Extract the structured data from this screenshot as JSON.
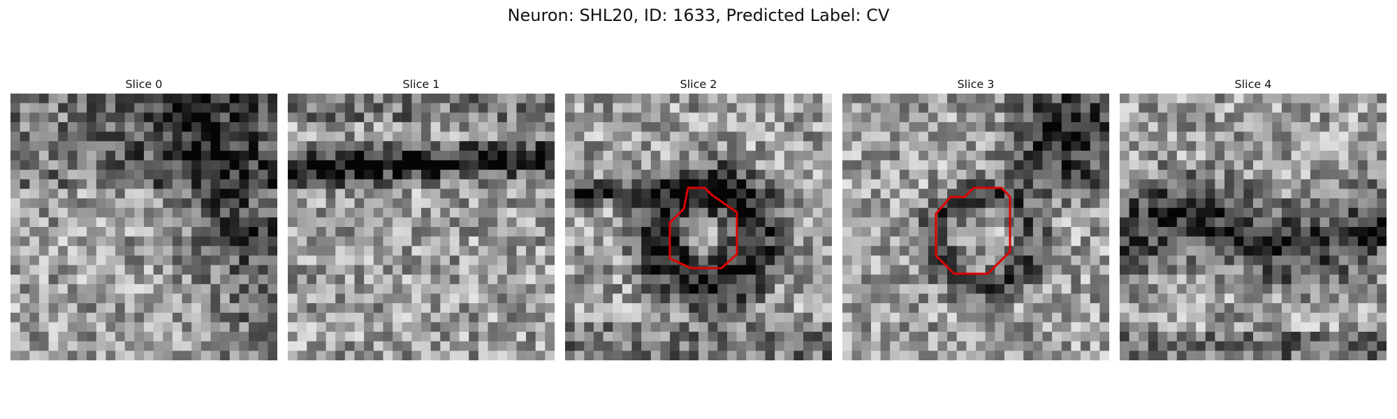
{
  "figure": {
    "title": "Neuron: SHL20, ID: 1633, Predicted Label: CV"
  },
  "panels": [
    {
      "title": "Slice 0",
      "seed": 11,
      "feature": "diag-streak",
      "has_contour": false
    },
    {
      "title": "Slice 1",
      "seed": 23,
      "feature": "dark-band-top",
      "has_contour": false
    },
    {
      "title": "Slice 2",
      "seed": 37,
      "feature": "dark-blob-center",
      "has_contour": true
    },
    {
      "title": "Slice 3",
      "seed": 53,
      "feature": "dark-corner-right",
      "has_contour": true
    },
    {
      "title": "Slice 4",
      "seed": 71,
      "feature": "dark-band-mid",
      "has_contour": false
    }
  ],
  "colors": {
    "contour": "#e00000",
    "colormap": "gray"
  }
}
